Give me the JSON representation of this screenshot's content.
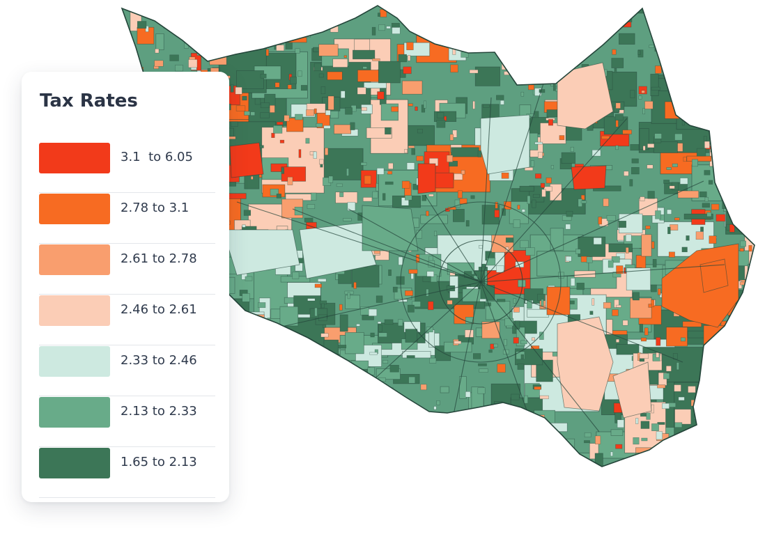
{
  "legend": {
    "title": "Tax Rates",
    "items": [
      {
        "label": "3.1  to 6.05",
        "color": "#f23a1a"
      },
      {
        "label": "2.78 to 3.1",
        "color": "#f76b22"
      },
      {
        "label": "2.61 to 2.78",
        "color": "#f99e6e"
      },
      {
        "label": "2.46 to 2.61",
        "color": "#fbcdb6"
      },
      {
        "label": "2.33 to 2.46",
        "color": "#cde9e0"
      },
      {
        "label": "2.13 to 2.33",
        "color": "#68ab89"
      },
      {
        "label": "1.65 to 2.13",
        "color": "#3c7657"
      }
    ]
  },
  "map": {
    "region_fill": "#5e9f80",
    "border_color": "#24453a"
  }
}
